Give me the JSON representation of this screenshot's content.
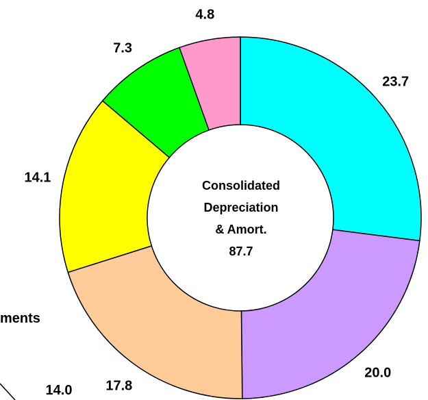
{
  "chart_data": {
    "type": "pie",
    "style": "donut",
    "center_label": [
      "Consolidated",
      "Depreciation",
      "& Amort.",
      "87.7"
    ],
    "slices": [
      {
        "value": 23.7,
        "label": "23.7",
        "color": "#00ffff"
      },
      {
        "value": 20.0,
        "label": "20.0",
        "color": "#cc99ff"
      },
      {
        "value": 17.8,
        "label": "17.8",
        "color": "#ffcc99"
      },
      {
        "value": 14.1,
        "label": "14.1",
        "color": "#ffff00"
      },
      {
        "value": 7.3,
        "label": "7.3",
        "color": "#00ff00"
      },
      {
        "value": 4.8,
        "label": "4.8",
        "color": "#ff99cc"
      }
    ],
    "total": 87.7
  },
  "side_texts": {
    "truncated_label": "ments",
    "partial_value": "14.0"
  }
}
